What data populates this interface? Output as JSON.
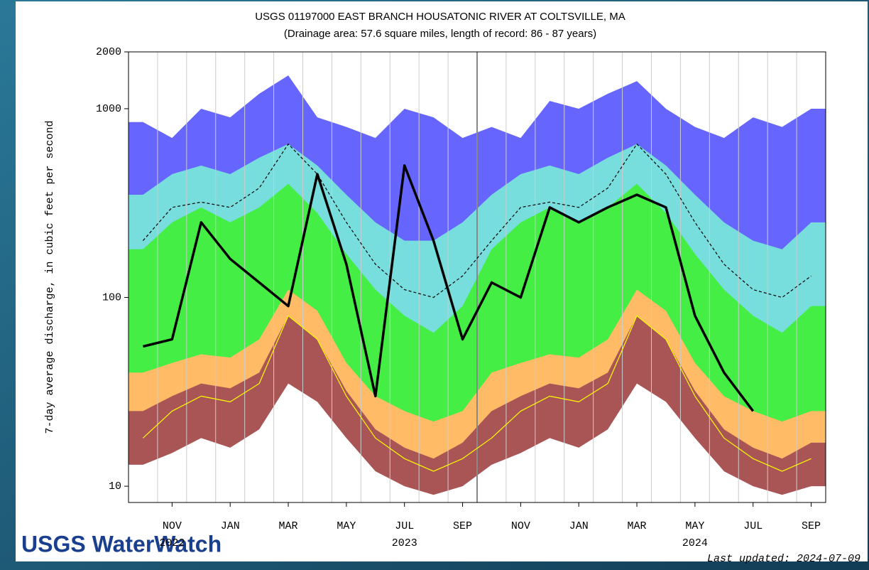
{
  "chart_data": {
    "type": "area",
    "title": "USGS 01197000 EAST BRANCH HOUSATONIC RIVER AT COLTSVILLE, MA",
    "subtitle": "(Drainage area: 57.6 square miles, length of record: 86 - 87 years)",
    "y_label": "7-day average discharge, in cubic feet per second",
    "yscale": "log",
    "ylim": [
      8.2,
      2000
    ],
    "yticks": [
      10,
      100,
      1000,
      2000
    ],
    "x": [
      "2022-10",
      "2022-11",
      "2022-12",
      "2023-01",
      "2023-02",
      "2023-03",
      "2023-04",
      "2023-05",
      "2023-06",
      "2023-07",
      "2023-08",
      "2023-09",
      "2023-10",
      "2023-11",
      "2023-12",
      "2024-01",
      "2024-02",
      "2024-03",
      "2024-04",
      "2024-05",
      "2024-06",
      "2024-07",
      "2024-08",
      "2024-09"
    ],
    "xticks": [
      {
        "value": "2022-11",
        "label": "NOV"
      },
      {
        "value": "2023-01",
        "label": "JAN"
      },
      {
        "value": "2023-03",
        "label": "MAR"
      },
      {
        "value": "2023-05",
        "label": "MAY"
      },
      {
        "value": "2023-07",
        "label": "JUL"
      },
      {
        "value": "2023-09",
        "label": "SEP"
      },
      {
        "value": "2023-11",
        "label": "NOV"
      },
      {
        "value": "2024-01",
        "label": "JAN"
      },
      {
        "value": "2024-03",
        "label": "MAR"
      },
      {
        "value": "2024-05",
        "label": "MAY"
      },
      {
        "value": "2024-07",
        "label": "JUL"
      },
      {
        "value": "2024-09",
        "label": "SEP"
      }
    ],
    "year_labels": [
      {
        "value": "2022-11",
        "label": "2022"
      },
      {
        "value": "2023-07",
        "label": "2023"
      },
      {
        "value": "2024-05",
        "label": "2024"
      }
    ],
    "series": [
      {
        "style": "area",
        "color": "#6666ff",
        "values": [
          850,
          700,
          1000,
          900,
          1200,
          1500,
          900,
          800,
          700,
          1000,
          900,
          700,
          800,
          700,
          1100,
          1000,
          1200,
          1400,
          1000,
          800,
          700,
          900,
          800,
          1000
        ]
      },
      {
        "style": "area",
        "color": "#77dddd",
        "values": [
          350,
          450,
          500,
          450,
          550,
          650,
          500,
          350,
          250,
          200,
          200,
          250,
          350,
          450,
          500,
          450,
          550,
          650,
          500,
          350,
          250,
          200,
          180,
          250
        ]
      },
      {
        "style": "area",
        "color": "#44ee44",
        "values": [
          180,
          250,
          300,
          250,
          300,
          400,
          280,
          170,
          110,
          80,
          65,
          90,
          180,
          250,
          300,
          250,
          300,
          400,
          280,
          170,
          110,
          80,
          65,
          90
        ]
      },
      {
        "style": "area",
        "color": "#ffbb66",
        "values": [
          40,
          45,
          50,
          48,
          60,
          110,
          85,
          45,
          30,
          25,
          22,
          25,
          40,
          45,
          50,
          48,
          60,
          110,
          85,
          45,
          30,
          25,
          22,
          25
        ]
      },
      {
        "style": "area",
        "color": "#aa5555",
        "values": [
          25,
          30,
          35,
          33,
          40,
          80,
          60,
          32,
          20,
          16,
          14,
          17,
          25,
          30,
          35,
          33,
          40,
          80,
          60,
          32,
          20,
          16,
          14,
          17
        ]
      },
      {
        "style": "area",
        "color": "#ffffff",
        "values": [
          13,
          15,
          18,
          16,
          20,
          35,
          28,
          18,
          12,
          10,
          9,
          10,
          13,
          15,
          18,
          16,
          20,
          35,
          28,
          18,
          12,
          10,
          9,
          10
        ]
      },
      {
        "style": "line",
        "dash": true,
        "width": 1.2,
        "color": "#000000",
        "values": [
          200,
          300,
          320,
          300,
          380,
          650,
          450,
          250,
          150,
          110,
          100,
          130,
          200,
          300,
          320,
          300,
          380,
          650,
          450,
          250,
          150,
          110,
          100,
          130
        ]
      },
      {
        "style": "line",
        "dash": false,
        "width": 1.2,
        "color": "#ffff00",
        "values": [
          18,
          25,
          30,
          28,
          35,
          80,
          60,
          30,
          18,
          14,
          12,
          14,
          18,
          25,
          30,
          28,
          35,
          80,
          60,
          30,
          18,
          14,
          12,
          14
        ]
      },
      {
        "style": "line",
        "dash": false,
        "width": 3.5,
        "color": "#000000",
        "values": [
          55,
          60,
          250,
          160,
          120,
          90,
          450,
          150,
          30,
          500,
          200,
          60,
          120,
          100,
          300,
          250,
          300,
          350,
          300,
          80,
          40,
          25,
          null,
          null
        ]
      }
    ]
  },
  "logo": "USGS WaterWatch",
  "updated": "Last updated: 2024-07-09"
}
